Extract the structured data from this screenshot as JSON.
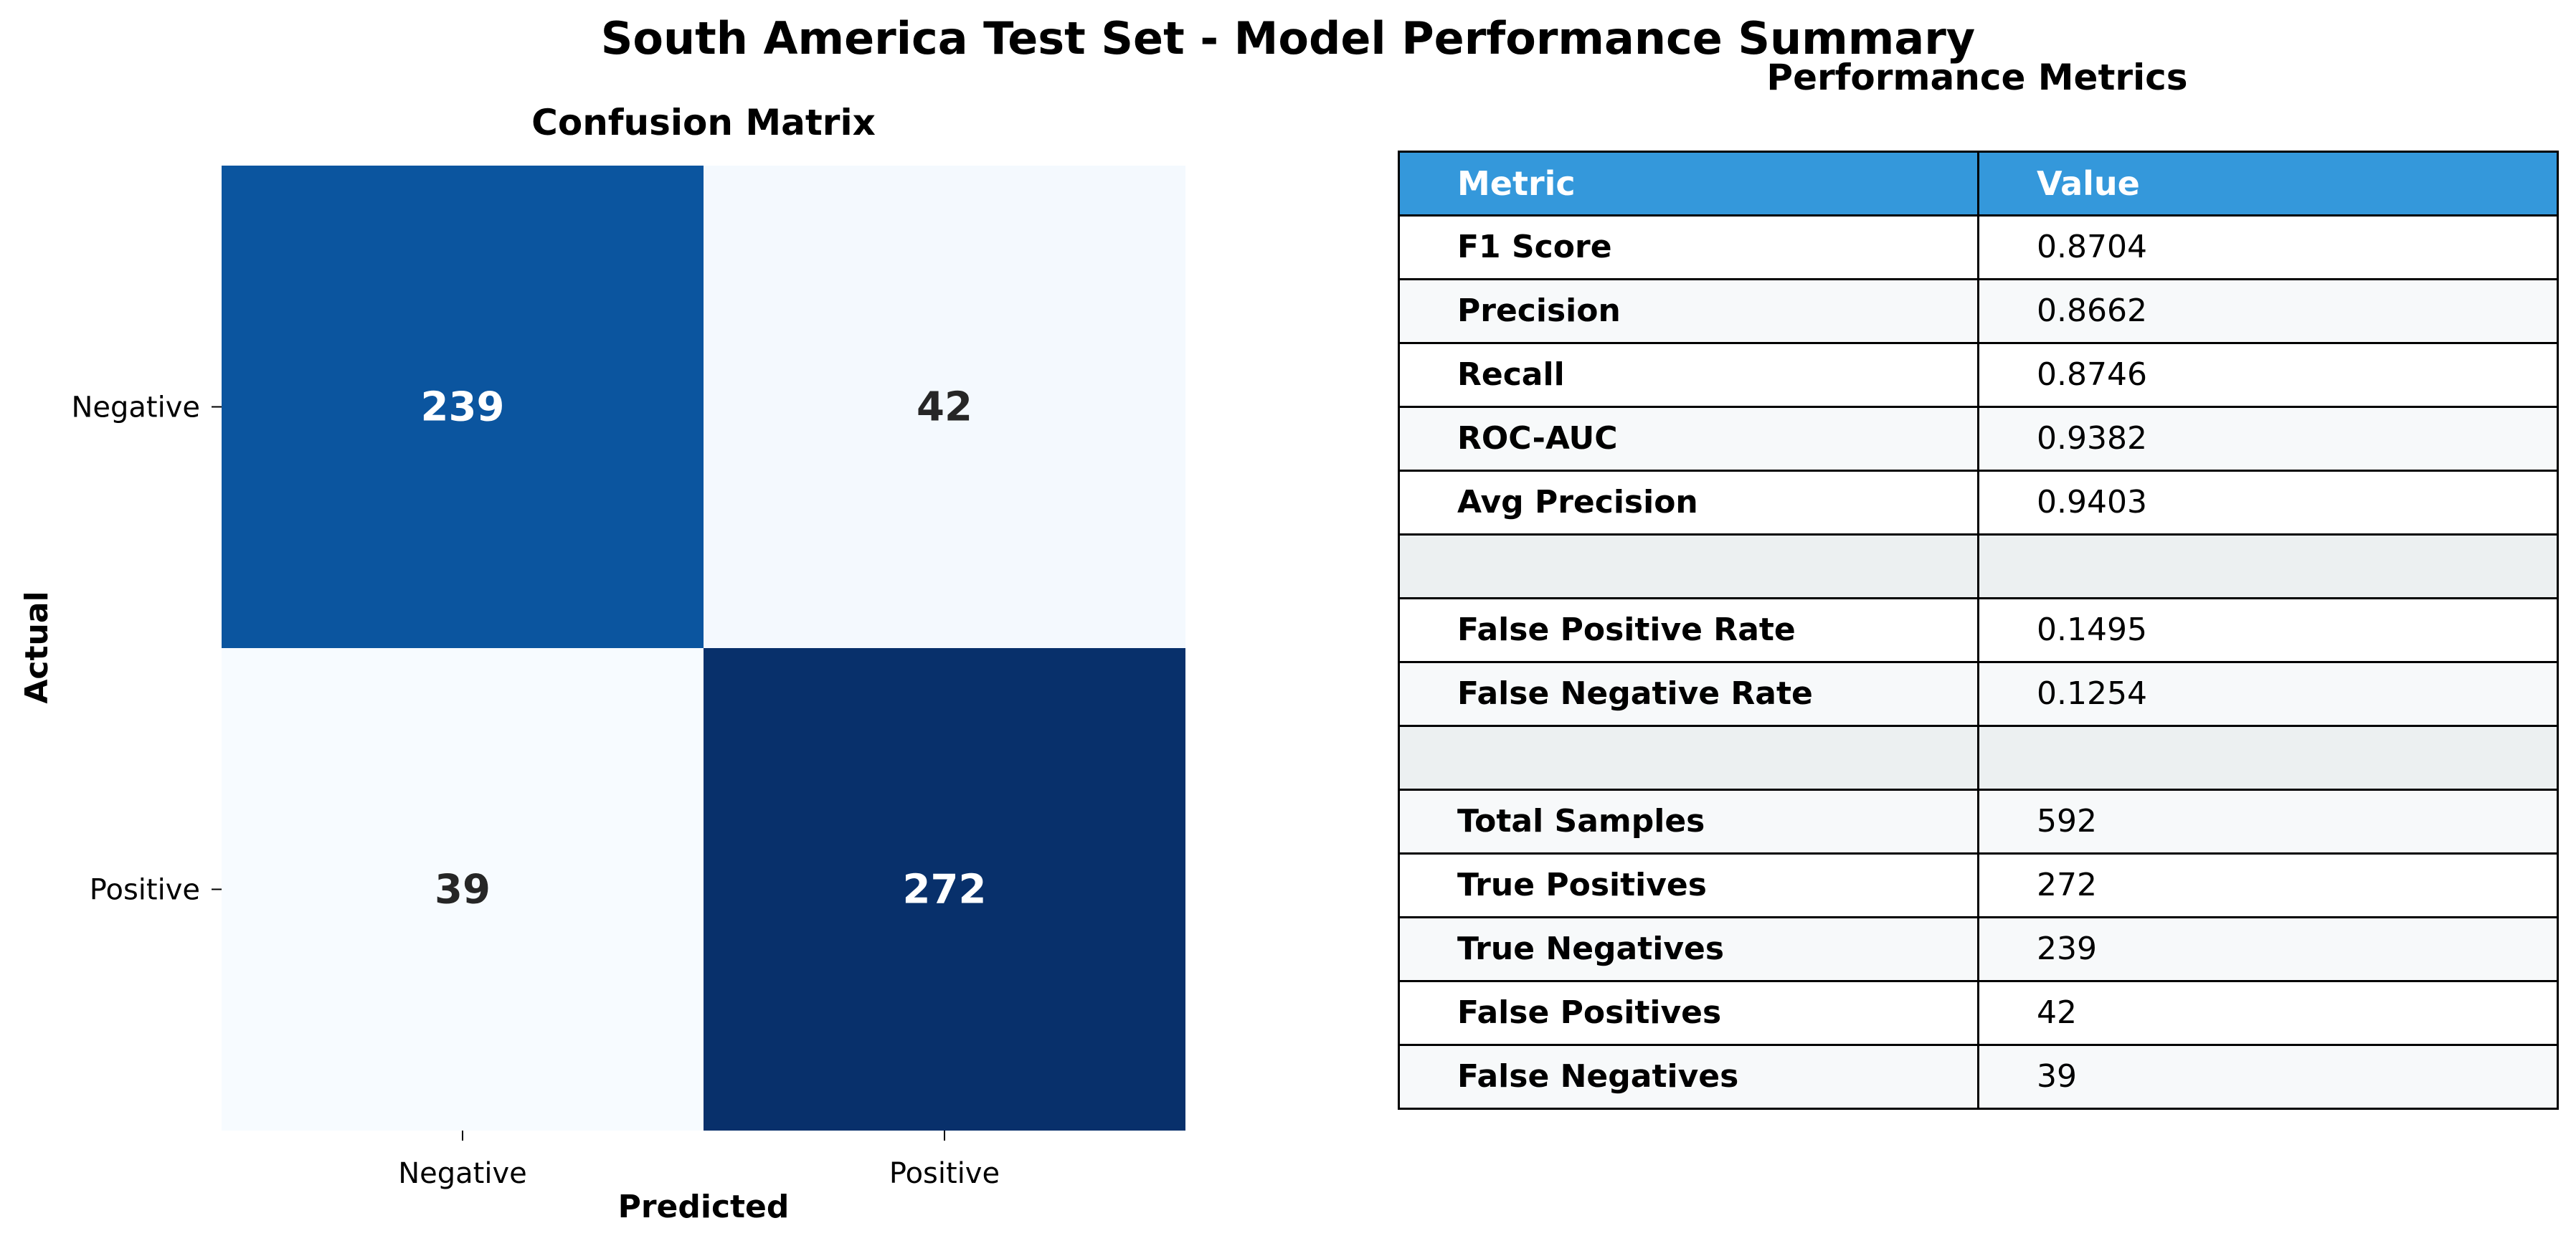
{
  "suptitle": "South America Test Set - Model Performance Summary",
  "chart_data": [
    {
      "type": "heatmap",
      "title": "Confusion Matrix",
      "xlabel": "Predicted",
      "ylabel": "Actual",
      "x_categories": [
        "Negative",
        "Positive"
      ],
      "y_categories": [
        "Negative",
        "Positive"
      ],
      "values": [
        [
          239,
          42
        ],
        [
          39,
          272
        ]
      ],
      "colormap": "Blues",
      "colors": {
        "low": "#f7fbff",
        "high": "#08306b",
        "text_dark": "#262626",
        "text_light": "#ffffff"
      }
    },
    {
      "type": "table",
      "title": "Performance Metrics",
      "columns": [
        "Metric",
        "Value"
      ],
      "rows": [
        [
          "F1 Score",
          "0.8704"
        ],
        [
          "Precision",
          "0.8662"
        ],
        [
          "Recall",
          "0.8746"
        ],
        [
          "ROC-AUC",
          "0.9382"
        ],
        [
          "Avg Precision",
          "0.9403"
        ],
        [
          "",
          ""
        ],
        [
          "False Positive Rate",
          "0.1495"
        ],
        [
          "False Negative Rate",
          "0.1254"
        ],
        [
          "",
          ""
        ],
        [
          "Total Samples",
          "592"
        ],
        [
          "True Positives",
          "272"
        ],
        [
          "True Negatives",
          "239"
        ],
        [
          "False Positives",
          "42"
        ],
        [
          "False Negatives",
          "39"
        ]
      ],
      "colors": {
        "header": "#3498db",
        "separator": "#ecf0f1",
        "row_alt": "#f7f9fa"
      }
    }
  ]
}
